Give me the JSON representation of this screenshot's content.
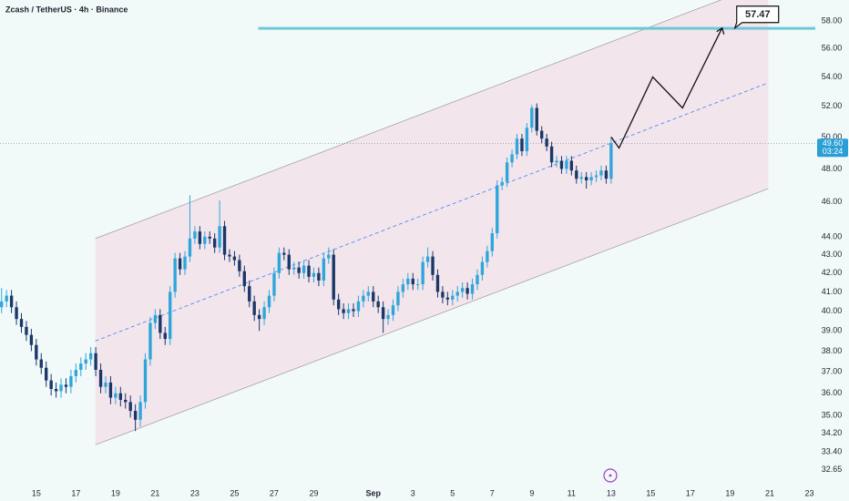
{
  "chart_data": {
    "type": "candlestick",
    "title": "Zcash / TetherUS · 4h · Binance",
    "log_scale": true,
    "grid": false,
    "up_color": "#2fa6da",
    "down_color": "#1a3768",
    "xlim": [
      13.17,
      54.3
    ],
    "xticks": [
      15,
      17,
      19,
      21,
      23,
      25,
      27,
      29,
      {
        "value": 32,
        "label": "Sep"
      },
      {
        "value": 34,
        "label": "3"
      },
      {
        "value": 36,
        "label": "5"
      },
      {
        "value": 38,
        "label": "7"
      },
      {
        "value": 40,
        "label": "9"
      },
      {
        "value": 42,
        "label": "11"
      },
      {
        "value": 44,
        "label": "13"
      },
      {
        "value": 46,
        "label": "15"
      },
      {
        "value": 48,
        "label": "17"
      },
      {
        "value": 50,
        "label": "19"
      },
      {
        "value": 52,
        "label": "21"
      },
      {
        "value": 54,
        "label": "23"
      }
    ],
    "ylim": [
      32.1,
      59.6
    ],
    "yticks": [
      {
        "value": 58,
        "label": "58.00"
      },
      {
        "value": 56,
        "label": "56.00"
      },
      {
        "value": 54,
        "label": "54.00"
      },
      {
        "value": 52,
        "label": "52.00"
      },
      {
        "value": 50,
        "label": "50.00"
      },
      {
        "value": 48,
        "label": "48.00"
      },
      {
        "value": 46,
        "label": "46.00"
      },
      {
        "value": 44,
        "label": "44.00"
      },
      {
        "value": 43,
        "label": "43.00"
      },
      {
        "value": 42,
        "label": "42.00"
      },
      {
        "value": 41,
        "label": "41.00"
      },
      {
        "value": 40,
        "label": "40.00"
      },
      {
        "value": 39,
        "label": "39.00"
      },
      {
        "value": 38,
        "label": "38.00"
      },
      {
        "value": 37,
        "label": "37.00"
      },
      {
        "value": 36,
        "label": "36.00"
      },
      {
        "value": 35,
        "label": "35.00"
      },
      {
        "value": 34.2,
        "label": "34.20"
      },
      {
        "value": 33.4,
        "label": "33.40"
      },
      {
        "value": 32.65,
        "label": "32.65"
      }
    ],
    "x": [
      13.25,
      13.5,
      13.75,
      14,
      14.25,
      14.5,
      14.75,
      15,
      15.25,
      15.5,
      15.75,
      16,
      16.25,
      16.5,
      16.75,
      17,
      17.25,
      17.5,
      17.75,
      18,
      18.25,
      18.5,
      18.75,
      19,
      19.25,
      19.5,
      19.75,
      20,
      20.25,
      20.5,
      20.75,
      21,
      21.25,
      21.5,
      21.75,
      22,
      22.25,
      22.5,
      22.75,
      23,
      23.25,
      23.5,
      23.75,
      24,
      24.25,
      24.5,
      24.75,
      25,
      25.25,
      25.5,
      25.75,
      26,
      26.25,
      26.5,
      26.75,
      27,
      27.25,
      27.5,
      27.75,
      28,
      28.25,
      28.5,
      28.75,
      29,
      29.25,
      29.5,
      29.75,
      30,
      30.25,
      30.5,
      30.75,
      31,
      31.25,
      31.5,
      31.75,
      32,
      32.25,
      32.5,
      32.75,
      33,
      33.25,
      33.5,
      33.75,
      34,
      34.25,
      34.5,
      34.75,
      35,
      35.25,
      35.5,
      35.75,
      36,
      36.25,
      36.5,
      36.75,
      37,
      37.25,
      37.5,
      37.75,
      38,
      38.25,
      38.5,
      38.75,
      39,
      39.25,
      39.5,
      39.75,
      40,
      40.25,
      40.5,
      40.75,
      41,
      41.25,
      41.5,
      41.75,
      42,
      42.25,
      42.5,
      42.75,
      43,
      43.25,
      43.5,
      43.75,
      44
    ],
    "open": [
      40.2,
      40.5,
      40.8,
      40.2,
      39.6,
      39.2,
      38.8,
      38.3,
      37.6,
      37.2,
      36.6,
      36.2,
      36.1,
      36.4,
      36.3,
      36.8,
      37.1,
      37.4,
      37.6,
      37.9,
      37.1,
      36.3,
      36.5,
      35.8,
      36.0,
      35.7,
      35.6,
      35.2,
      34.8,
      35.6,
      37.6,
      39.4,
      39.8,
      38.9,
      38.6,
      41.0,
      42.8,
      42.2,
      42.9,
      43.9,
      44.3,
      43.6,
      44.0,
      43.9,
      43.4,
      44.6,
      43.0,
      42.9,
      42.7,
      42.1,
      41.3,
      40.5,
      39.8,
      39.6,
      40.2,
      40.8,
      42.0,
      43.1,
      43.0,
      42.2,
      42.3,
      42.0,
      42.4,
      41.8,
      42.0,
      41.6,
      42.8,
      43.0,
      40.6,
      40.1,
      39.9,
      40.1,
      40.0,
      40.5,
      40.8,
      41.0,
      40.5,
      40.2,
      39.6,
      39.8,
      40.3,
      41.0,
      41.4,
      41.7,
      41.4,
      41.4,
      42.6,
      42.9,
      41.9,
      41.0,
      40.7,
      40.6,
      40.8,
      41.0,
      41.2,
      40.9,
      41.4,
      41.9,
      42.6,
      43.2,
      44.2,
      47.0,
      47.2,
      48.4,
      48.9,
      49.9,
      49.1,
      50.6,
      51.9,
      50.4,
      49.9,
      49.4,
      48.4,
      48.5,
      48.0,
      48.5,
      47.9,
      47.4,
      47.5,
      47.3,
      47.5,
      47.6,
      47.9,
      47.4
    ],
    "high": [
      41.2,
      41.1,
      41.1,
      40.5,
      39.9,
      39.5,
      39.1,
      38.6,
      37.9,
      37.5,
      36.9,
      36.5,
      36.7,
      36.7,
      37.1,
      37.4,
      37.7,
      37.9,
      38.2,
      38.2,
      37.4,
      36.8,
      36.8,
      36.3,
      36.3,
      36.0,
      35.9,
      35.5,
      35.9,
      37.9,
      39.7,
      40.1,
      40.1,
      39.2,
      41.3,
      43.1,
      43.1,
      43.2,
      46.4,
      44.6,
      44.6,
      44.3,
      44.3,
      44.2,
      46.1,
      44.9,
      43.3,
      43.2,
      43.0,
      42.4,
      41.6,
      40.8,
      40.1,
      40.5,
      41.1,
      42.3,
      43.4,
      43.4,
      43.3,
      42.6,
      42.6,
      42.7,
      42.7,
      42.3,
      42.3,
      43.1,
      43.4,
      43.3,
      40.9,
      40.4,
      40.4,
      40.4,
      40.8,
      41.1,
      41.3,
      41.3,
      40.8,
      40.5,
      40.1,
      40.6,
      41.3,
      41.7,
      42.0,
      42.0,
      41.7,
      42.9,
      43.4,
      43.2,
      42.2,
      41.3,
      41.0,
      41.1,
      41.3,
      41.5,
      41.5,
      41.7,
      42.2,
      42.9,
      43.5,
      44.5,
      47.3,
      47.5,
      48.7,
      49.2,
      50.2,
      50.2,
      50.9,
      52.1,
      52.2,
      50.7,
      50.2,
      49.7,
      48.8,
      48.8,
      48.8,
      48.8,
      48.2,
      47.8,
      47.8,
      47.8,
      47.9,
      48.2,
      48.2,
      50.0
    ],
    "low": [
      39.9,
      40.2,
      39.9,
      39.3,
      38.9,
      38.5,
      38.0,
      37.3,
      36.9,
      36.3,
      35.9,
      35.8,
      35.8,
      36.0,
      36.0,
      36.5,
      36.8,
      37.1,
      37.3,
      36.8,
      36.0,
      36.0,
      35.5,
      35.5,
      35.4,
      35.3,
      34.9,
      34.3,
      34.5,
      35.3,
      37.3,
      39.1,
      38.6,
      38.3,
      38.3,
      40.7,
      41.9,
      41.9,
      42.6,
      43.6,
      43.3,
      43.3,
      43.6,
      43.1,
      43.1,
      42.7,
      42.6,
      42.4,
      41.8,
      41.0,
      40.2,
      39.5,
      39.0,
      39.3,
      39.9,
      40.5,
      41.7,
      42.7,
      41.9,
      41.9,
      41.7,
      41.7,
      41.5,
      41.5,
      41.3,
      41.3,
      42.5,
      40.3,
      39.8,
      39.6,
      39.6,
      39.7,
      39.7,
      40.2,
      40.5,
      40.2,
      39.9,
      38.9,
      39.3,
      39.5,
      40.0,
      40.7,
      41.1,
      41.1,
      41.1,
      41.1,
      42.3,
      41.6,
      40.7,
      40.4,
      40.3,
      40.3,
      40.5,
      40.7,
      40.6,
      40.6,
      41.1,
      41.6,
      42.3,
      42.9,
      43.9,
      46.7,
      46.9,
      48.1,
      48.6,
      48.8,
      48.8,
      50.3,
      50.1,
      49.6,
      49.1,
      48.1,
      48.1,
      47.7,
      47.7,
      47.6,
      47.1,
      47.1,
      46.8,
      47.0,
      47.2,
      47.3,
      47.1,
      47.1
    ],
    "close": [
      40.5,
      40.8,
      40.2,
      39.6,
      39.2,
      38.8,
      38.3,
      37.6,
      37.2,
      36.6,
      36.2,
      36.1,
      36.4,
      36.3,
      36.8,
      37.1,
      37.4,
      37.6,
      37.9,
      37.1,
      36.3,
      36.5,
      35.8,
      36.0,
      35.7,
      35.6,
      35.2,
      34.8,
      35.6,
      37.6,
      39.4,
      39.8,
      38.9,
      38.6,
      41.0,
      42.8,
      42.2,
      42.9,
      43.9,
      44.3,
      43.6,
      44.0,
      43.9,
      43.4,
      44.6,
      43.0,
      42.9,
      42.7,
      42.1,
      41.3,
      40.5,
      39.8,
      39.6,
      40.2,
      40.8,
      42.0,
      43.1,
      43.0,
      42.2,
      42.3,
      42.0,
      42.4,
      41.8,
      42.0,
      41.6,
      42.8,
      43.0,
      40.6,
      40.1,
      39.9,
      40.1,
      40.0,
      40.5,
      40.8,
      41.0,
      40.5,
      40.2,
      39.6,
      39.8,
      40.3,
      41.0,
      41.4,
      41.7,
      41.4,
      41.4,
      42.6,
      42.9,
      41.9,
      41.0,
      40.7,
      40.6,
      40.8,
      41.0,
      41.2,
      40.9,
      41.4,
      41.9,
      42.6,
      43.2,
      44.2,
      47.0,
      47.2,
      48.4,
      48.9,
      49.9,
      49.1,
      50.6,
      51.9,
      50.4,
      49.9,
      49.4,
      48.4,
      48.5,
      48.0,
      48.5,
      47.9,
      47.4,
      47.5,
      47.3,
      47.5,
      47.6,
      47.9,
      47.4,
      49.6
    ],
    "last_price": {
      "value": 49.6,
      "label": "49.60",
      "countdown": "03:24"
    },
    "channel": {
      "color": "#9a9a9a",
      "fill": "#f2e2ea",
      "upper": {
        "x": [
          17.98,
          51.93
        ],
        "y": [
          43.9,
          61.0
        ]
      },
      "middle": {
        "x": [
          17.98,
          51.93
        ],
        "y": [
          38.5,
          53.6
        ]
      },
      "lower": {
        "x": [
          17.98,
          51.93
        ],
        "y": [
          33.7,
          46.8
        ]
      }
    },
    "target": {
      "value": 57.47,
      "label": "57.47",
      "x_start": 26.2,
      "color": "#6cc7d9"
    },
    "projection": {
      "x": [
        44.0,
        44.4,
        46.1,
        47.6,
        49.6
      ],
      "y": [
        50.0,
        49.3,
        54.0,
        51.9,
        57.5
      ]
    }
  }
}
